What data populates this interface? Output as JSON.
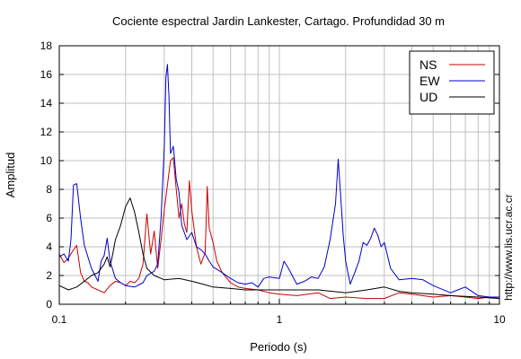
{
  "chart_data": {
    "type": "line",
    "title": "Cociente espectral Jardin Lankester, Cartago. Profundidad 30 m",
    "xlabel": "Periodo (s)",
    "ylabel": "Amplitud",
    "x_scale": "log",
    "xlim": [
      0.1,
      10
    ],
    "ylim": [
      0,
      18
    ],
    "x_ticks": [
      0.1,
      1,
      10
    ],
    "x_tick_labels": [
      "0.1",
      "1",
      "10"
    ],
    "y_ticks": [
      0,
      2,
      4,
      6,
      8,
      10,
      12,
      14,
      16,
      18
    ],
    "y_tick_labels": [
      "0",
      "2",
      "4",
      "6",
      "8",
      "10",
      "12",
      "14",
      "16",
      "18"
    ],
    "grid": true,
    "legend_position": "top-right",
    "credit": "http://www.lis.ucr.ac.cr",
    "series": [
      {
        "name": "NS",
        "color": "#cc0000",
        "points": [
          [
            0.1,
            3.5
          ],
          [
            0.105,
            2.9
          ],
          [
            0.11,
            3.2
          ],
          [
            0.115,
            3.7
          ],
          [
            0.12,
            4.1
          ],
          [
            0.125,
            2.2
          ],
          [
            0.13,
            1.6
          ],
          [
            0.135,
            1.5
          ],
          [
            0.14,
            1.2
          ],
          [
            0.15,
            1.0
          ],
          [
            0.16,
            0.8
          ],
          [
            0.17,
            1.3
          ],
          [
            0.18,
            1.6
          ],
          [
            0.19,
            1.5
          ],
          [
            0.2,
            1.3
          ],
          [
            0.21,
            1.6
          ],
          [
            0.22,
            1.5
          ],
          [
            0.23,
            1.8
          ],
          [
            0.24,
            2.8
          ],
          [
            0.25,
            6.3
          ],
          [
            0.26,
            3.5
          ],
          [
            0.27,
            5.1
          ],
          [
            0.28,
            2.5
          ],
          [
            0.29,
            4.5
          ],
          [
            0.3,
            6.6
          ],
          [
            0.31,
            8.3
          ],
          [
            0.32,
            10.0
          ],
          [
            0.33,
            10.2
          ],
          [
            0.34,
            8.0
          ],
          [
            0.35,
            6.0
          ],
          [
            0.36,
            7.0
          ],
          [
            0.37,
            5.6
          ],
          [
            0.38,
            5.0
          ],
          [
            0.39,
            8.6
          ],
          [
            0.4,
            6.5
          ],
          [
            0.42,
            4.0
          ],
          [
            0.44,
            2.8
          ],
          [
            0.46,
            3.6
          ],
          [
            0.47,
            8.2
          ],
          [
            0.48,
            5.3
          ],
          [
            0.5,
            4.3
          ],
          [
            0.52,
            3.0
          ],
          [
            0.55,
            2.2
          ],
          [
            0.6,
            1.5
          ],
          [
            0.65,
            1.2
          ],
          [
            0.7,
            1.1
          ],
          [
            0.8,
            1.0
          ],
          [
            0.9,
            0.8
          ],
          [
            1.0,
            0.7
          ],
          [
            1.2,
            0.6
          ],
          [
            1.5,
            0.8
          ],
          [
            1.7,
            0.4
          ],
          [
            2.0,
            0.5
          ],
          [
            2.5,
            0.4
          ],
          [
            3.0,
            0.4
          ],
          [
            3.5,
            0.8
          ],
          [
            4.0,
            0.7
          ],
          [
            5.0,
            0.5
          ],
          [
            6.0,
            0.6
          ],
          [
            7.0,
            0.5
          ],
          [
            8.0,
            0.4
          ],
          [
            9.0,
            0.5
          ],
          [
            10.0,
            0.4
          ]
        ]
      },
      {
        "name": "EW",
        "color": "#0000cc",
        "points": [
          [
            0.1,
            3.3
          ],
          [
            0.105,
            3.5
          ],
          [
            0.11,
            3.0
          ],
          [
            0.113,
            4.5
          ],
          [
            0.116,
            8.3
          ],
          [
            0.12,
            8.4
          ],
          [
            0.125,
            6.0
          ],
          [
            0.13,
            4.1
          ],
          [
            0.14,
            2.5
          ],
          [
            0.15,
            1.6
          ],
          [
            0.155,
            3.0
          ],
          [
            0.16,
            3.4
          ],
          [
            0.165,
            4.6
          ],
          [
            0.17,
            3.0
          ],
          [
            0.18,
            1.8
          ],
          [
            0.19,
            1.5
          ],
          [
            0.2,
            1.3
          ],
          [
            0.22,
            1.2
          ],
          [
            0.24,
            1.5
          ],
          [
            0.25,
            2.0
          ],
          [
            0.27,
            2.3
          ],
          [
            0.28,
            2.8
          ],
          [
            0.29,
            6.0
          ],
          [
            0.3,
            11.0
          ],
          [
            0.305,
            15.8
          ],
          [
            0.31,
            16.7
          ],
          [
            0.315,
            14.5
          ],
          [
            0.32,
            10.5
          ],
          [
            0.33,
            11.0
          ],
          [
            0.34,
            8.7
          ],
          [
            0.35,
            7.8
          ],
          [
            0.36,
            5.5
          ],
          [
            0.38,
            4.5
          ],
          [
            0.4,
            5.0
          ],
          [
            0.42,
            4.0
          ],
          [
            0.44,
            3.8
          ],
          [
            0.46,
            3.5
          ],
          [
            0.48,
            3.0
          ],
          [
            0.5,
            2.6
          ],
          [
            0.55,
            2.2
          ],
          [
            0.6,
            1.8
          ],
          [
            0.65,
            1.5
          ],
          [
            0.7,
            1.4
          ],
          [
            0.75,
            1.5
          ],
          [
            0.8,
            1.2
          ],
          [
            0.85,
            1.8
          ],
          [
            0.9,
            1.9
          ],
          [
            1.0,
            1.8
          ],
          [
            1.05,
            3.0
          ],
          [
            1.1,
            2.5
          ],
          [
            1.2,
            1.4
          ],
          [
            1.3,
            1.6
          ],
          [
            1.4,
            1.9
          ],
          [
            1.5,
            1.8
          ],
          [
            1.6,
            2.6
          ],
          [
            1.7,
            4.5
          ],
          [
            1.8,
            7.0
          ],
          [
            1.85,
            10.1
          ],
          [
            1.9,
            7.5
          ],
          [
            1.95,
            4.8
          ],
          [
            2.0,
            3.0
          ],
          [
            2.1,
            1.4
          ],
          [
            2.2,
            2.2
          ],
          [
            2.3,
            3.0
          ],
          [
            2.4,
            4.3
          ],
          [
            2.5,
            4.1
          ],
          [
            2.6,
            4.6
          ],
          [
            2.7,
            5.3
          ],
          [
            2.8,
            4.8
          ],
          [
            2.9,
            4.0
          ],
          [
            3.0,
            4.3
          ],
          [
            3.2,
            2.5
          ],
          [
            3.5,
            1.7
          ],
          [
            4.0,
            1.8
          ],
          [
            4.5,
            1.7
          ],
          [
            5.0,
            1.3
          ],
          [
            6.0,
            0.8
          ],
          [
            7.0,
            1.2
          ],
          [
            8.0,
            0.6
          ],
          [
            9.0,
            0.5
          ],
          [
            10.0,
            0.5
          ]
        ]
      },
      {
        "name": "UD",
        "color": "#000000",
        "points": [
          [
            0.1,
            1.3
          ],
          [
            0.11,
            1.0
          ],
          [
            0.12,
            1.2
          ],
          [
            0.13,
            1.6
          ],
          [
            0.14,
            2.0
          ],
          [
            0.15,
            2.2
          ],
          [
            0.16,
            2.8
          ],
          [
            0.165,
            3.3
          ],
          [
            0.17,
            2.6
          ],
          [
            0.175,
            3.5
          ],
          [
            0.18,
            4.5
          ],
          [
            0.19,
            5.5
          ],
          [
            0.2,
            6.8
          ],
          [
            0.21,
            7.4
          ],
          [
            0.22,
            6.4
          ],
          [
            0.23,
            5.0
          ],
          [
            0.24,
            3.5
          ],
          [
            0.25,
            2.5
          ],
          [
            0.27,
            2.0
          ],
          [
            0.29,
            1.8
          ],
          [
            0.3,
            1.7
          ],
          [
            0.35,
            1.8
          ],
          [
            0.4,
            1.6
          ],
          [
            0.45,
            1.4
          ],
          [
            0.5,
            1.2
          ],
          [
            0.6,
            1.1
          ],
          [
            0.7,
            1.0
          ],
          [
            0.8,
            1.0
          ],
          [
            0.9,
            1.0
          ],
          [
            1.0,
            1.0
          ],
          [
            1.2,
            1.0
          ],
          [
            1.5,
            1.0
          ],
          [
            2.0,
            0.8
          ],
          [
            2.5,
            1.0
          ],
          [
            3.0,
            1.2
          ],
          [
            3.5,
            0.9
          ],
          [
            4.0,
            0.8
          ],
          [
            5.0,
            0.7
          ],
          [
            6.0,
            0.6
          ],
          [
            8.0,
            0.5
          ],
          [
            10.0,
            0.4
          ]
        ]
      }
    ]
  }
}
